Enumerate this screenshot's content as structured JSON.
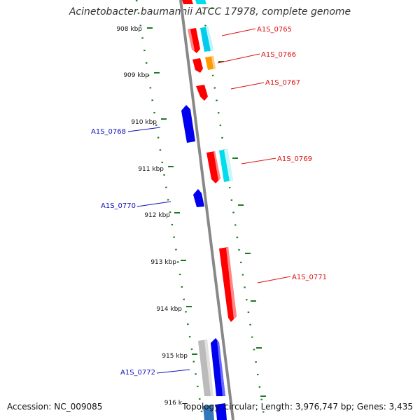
{
  "title": "Acinetobacter baumannii ATCC 17978, complete genome",
  "accession": "Accession: NC_009085",
  "topology": "Topology: circular; Length: 3,976,747 bp; Genes: 3,435",
  "colors": {
    "backbone": "#888888",
    "tick": "#1f7a1f",
    "forward_label": "#dd1111",
    "reverse_label": "#1111bb",
    "red": "#ff0000",
    "cyan": "#00ddee",
    "orange": "#ff9900",
    "blue": "#0000ee",
    "gray": "#bbbbbb",
    "steelblue": "#3377bb"
  },
  "ticks": [
    {
      "label": "908 kbp"
    },
    {
      "label": "909 kbp"
    },
    {
      "label": "910 kbp"
    },
    {
      "label": "911 kbp"
    },
    {
      "label": "912 kbp"
    },
    {
      "label": "913 kbp"
    },
    {
      "label": "914 kbp"
    },
    {
      "label": "915 kbp"
    },
    {
      "label": "916 k"
    }
  ],
  "gene_labels": [
    {
      "text": "A1S_0765",
      "strand": "forward"
    },
    {
      "text": "A1S_0766",
      "strand": "forward"
    },
    {
      "text": "A1S_0767",
      "strand": "forward"
    },
    {
      "text": "A1S_0768",
      "strand": "reverse"
    },
    {
      "text": "A1S_0769",
      "strand": "forward"
    },
    {
      "text": "A1S_0770",
      "strand": "reverse"
    },
    {
      "text": "A1S_0771",
      "strand": "forward"
    },
    {
      "text": "A1S_0772",
      "strand": "reverse"
    }
  ]
}
